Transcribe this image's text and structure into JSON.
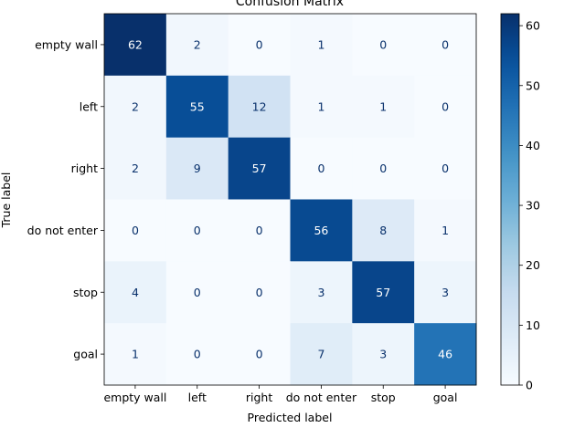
{
  "chart_data": {
    "type": "heatmap",
    "title": "Confusion Matrix",
    "xlabel": "Predicted label",
    "ylabel": "True label",
    "x_categories": [
      "empty wall",
      "left",
      "right",
      "do not enter",
      "stop",
      "goal"
    ],
    "y_categories": [
      "empty wall",
      "left",
      "right",
      "do not enter",
      "stop",
      "goal"
    ],
    "values": [
      [
        62,
        2,
        0,
        1,
        0,
        0
      ],
      [
        2,
        55,
        12,
        1,
        1,
        0
      ],
      [
        2,
        9,
        57,
        0,
        0,
        0
      ],
      [
        0,
        0,
        0,
        56,
        8,
        1
      ],
      [
        4,
        0,
        0,
        3,
        57,
        3
      ],
      [
        1,
        0,
        0,
        7,
        3,
        46
      ]
    ],
    "colormap": "Blues",
    "vmin": 0,
    "vmax": 62,
    "colorbar_ticks": [
      0,
      10,
      20,
      30,
      40,
      50,
      60
    ],
    "colors": {
      "light_text": "#ffffff",
      "dark_text": "#08306b",
      "axis": "#000000"
    }
  }
}
